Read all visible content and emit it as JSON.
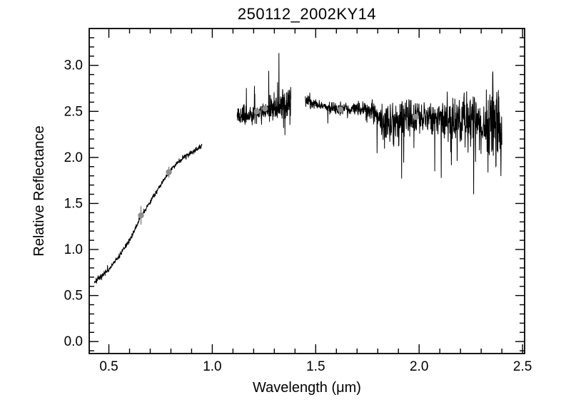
{
  "chart_data": {
    "type": "line",
    "title": "250112_2002KY14",
    "xlabel": "Wavelength (μm)",
    "ylabel": "Relative Reflectance",
    "background": "#ffffff",
    "axis_color": "#000000",
    "line_color": "#000000",
    "marker_color": "#8f8f8f",
    "xlim": [
      0.405,
      2.51
    ],
    "ylim": [
      -0.13,
      3.4
    ],
    "x_ticks": [
      0.5,
      1.0,
      1.5,
      2.0,
      2.5
    ],
    "x_tick_labels": [
      "0.5",
      "1.0",
      "1.5",
      "2.0",
      "2.5"
    ],
    "y_ticks": [
      0.0,
      0.5,
      1.0,
      1.5,
      2.0,
      2.5,
      3.0
    ],
    "y_tick_labels": [
      "0.0",
      "0.5",
      "1.0",
      "1.5",
      "2.0",
      "2.5",
      "3.0"
    ],
    "x_minor_step": 0.1,
    "y_minor_step": 0.1,
    "y_clamp": [
      0.27,
      3.32
    ],
    "seed": 7,
    "segments": [
      {
        "name": "visible",
        "x_start": 0.43,
        "x_end": 0.95,
        "n_points": 500,
        "trend": [
          [
            0.43,
            0.65
          ],
          [
            0.46,
            0.7
          ],
          [
            0.5,
            0.78
          ],
          [
            0.55,
            0.93
          ],
          [
            0.6,
            1.1
          ],
          [
            0.65,
            1.33
          ],
          [
            0.7,
            1.52
          ],
          [
            0.75,
            1.7
          ],
          [
            0.8,
            1.87
          ],
          [
            0.85,
            1.98
          ],
          [
            0.9,
            2.06
          ],
          [
            0.95,
            2.12
          ]
        ],
        "amp": [
          [
            0.43,
            0.035
          ],
          [
            0.55,
            0.025
          ],
          [
            0.95,
            0.028
          ]
        ],
        "spike_p": 0.01,
        "spike_down_frac": 0.5,
        "spike_mult": 1.0
      },
      {
        "name": "J-band",
        "x_start": 1.12,
        "x_end": 1.38,
        "n_points": 280,
        "trend": [
          [
            1.12,
            2.45
          ],
          [
            1.18,
            2.47
          ],
          [
            1.25,
            2.5
          ],
          [
            1.32,
            2.53
          ],
          [
            1.38,
            2.6
          ]
        ],
        "amp": [
          [
            1.12,
            0.1
          ],
          [
            1.2,
            0.1
          ],
          [
            1.28,
            0.12
          ],
          [
            1.33,
            0.16
          ],
          [
            1.38,
            0.22
          ]
        ],
        "spike_p": 0.06,
        "spike_down_frac": 0.35,
        "spike_mult": 2.5
      },
      {
        "name": "HK-band",
        "x_start": 1.45,
        "x_end": 2.4,
        "n_points": 850,
        "trend": [
          [
            1.45,
            2.63
          ],
          [
            1.5,
            2.57
          ],
          [
            1.6,
            2.53
          ],
          [
            1.7,
            2.53
          ],
          [
            1.78,
            2.5
          ],
          [
            1.85,
            2.36
          ],
          [
            1.92,
            2.4
          ],
          [
            1.98,
            2.43
          ],
          [
            2.05,
            2.44
          ],
          [
            2.15,
            2.42
          ],
          [
            2.25,
            2.41
          ],
          [
            2.32,
            2.36
          ],
          [
            2.4,
            2.28
          ]
        ],
        "amp": [
          [
            1.45,
            0.07
          ],
          [
            1.55,
            0.055
          ],
          [
            1.68,
            0.06
          ],
          [
            1.78,
            0.12
          ],
          [
            1.85,
            0.24
          ],
          [
            1.92,
            0.26
          ],
          [
            1.98,
            0.2
          ],
          [
            2.05,
            0.17
          ],
          [
            2.15,
            0.24
          ],
          [
            2.25,
            0.32
          ],
          [
            2.32,
            0.4
          ],
          [
            2.37,
            0.6
          ],
          [
            2.4,
            0.5
          ]
        ],
        "spike_p": 0.07,
        "spike_down_frac": 0.7,
        "spike_mult": 2.2
      }
    ],
    "markers": [
      {
        "x": 0.655,
        "y": 1.37,
        "err": 0.1
      },
      {
        "x": 0.79,
        "y": 1.84,
        "err": 0.06
      },
      {
        "x": 1.215,
        "y": 2.5,
        "err": 0.0
      },
      {
        "x": 1.255,
        "y": 2.53,
        "err": 0.0
      },
      {
        "x": 1.62,
        "y": 2.52,
        "err": 0.0
      },
      {
        "x": 1.985,
        "y": 2.44,
        "err": 0.0
      }
    ]
  }
}
